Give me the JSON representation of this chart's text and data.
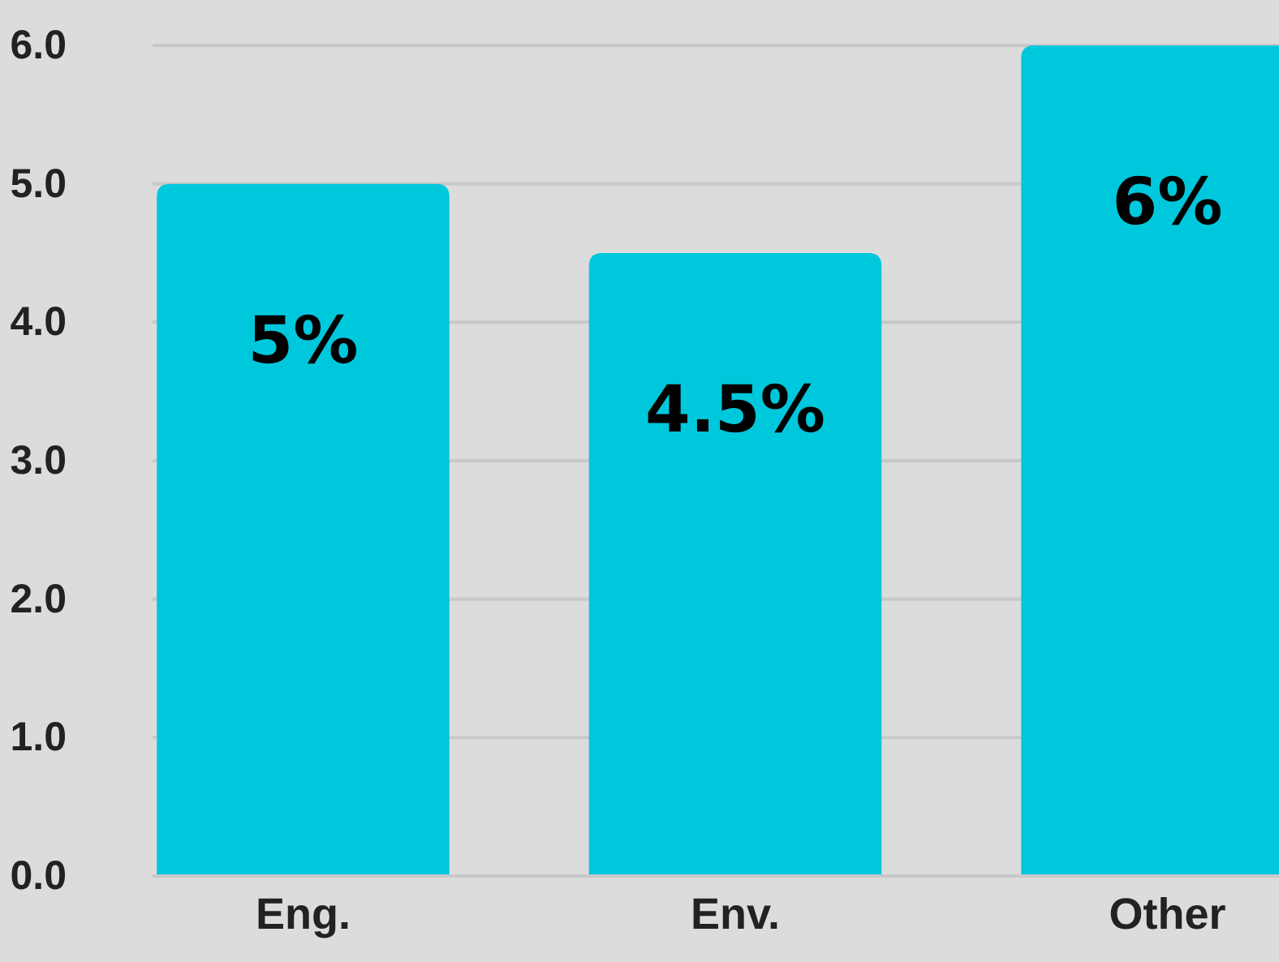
{
  "chart_data": {
    "type": "bar",
    "categories": [
      "Eng.",
      "Env.",
      "Other"
    ],
    "values": [
      5,
      4.5,
      6
    ],
    "value_labels": [
      "5%",
      "4.5%",
      "6%"
    ],
    "color": "#00c8dc",
    "ylim": [
      0,
      6
    ],
    "yticks": [
      {
        "value": 0,
        "label": "0.0"
      },
      {
        "value": 1,
        "label": "1.0"
      },
      {
        "value": 2,
        "label": "2.0"
      },
      {
        "value": 3,
        "label": "3.0"
      },
      {
        "value": 4,
        "label": "4.0"
      },
      {
        "value": 5,
        "label": "5.0"
      },
      {
        "value": 6,
        "label": "6.0"
      }
    ],
    "grid": "y"
  }
}
